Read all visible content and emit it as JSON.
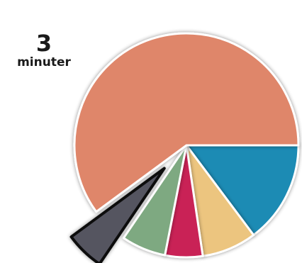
{
  "chart_data": {
    "type": "pie",
    "slices": [
      {
        "value": 1.5,
        "color": "#1f8bb4",
        "exploded": false
      },
      {
        "value": 0.8,
        "color": "#ecc57f",
        "exploded": false
      },
      {
        "value": 0.55,
        "color": "#c92156",
        "exploded": false
      },
      {
        "value": 0.65,
        "color": "#7ea981",
        "exploded": false
      },
      {
        "value": 0.55,
        "color": "#545460",
        "exploded": true
      },
      {
        "value": 6.1,
        "color": "#df866b",
        "exploded": false
      }
    ],
    "annotation": {
      "number": "3",
      "unit": "minuter"
    }
  }
}
